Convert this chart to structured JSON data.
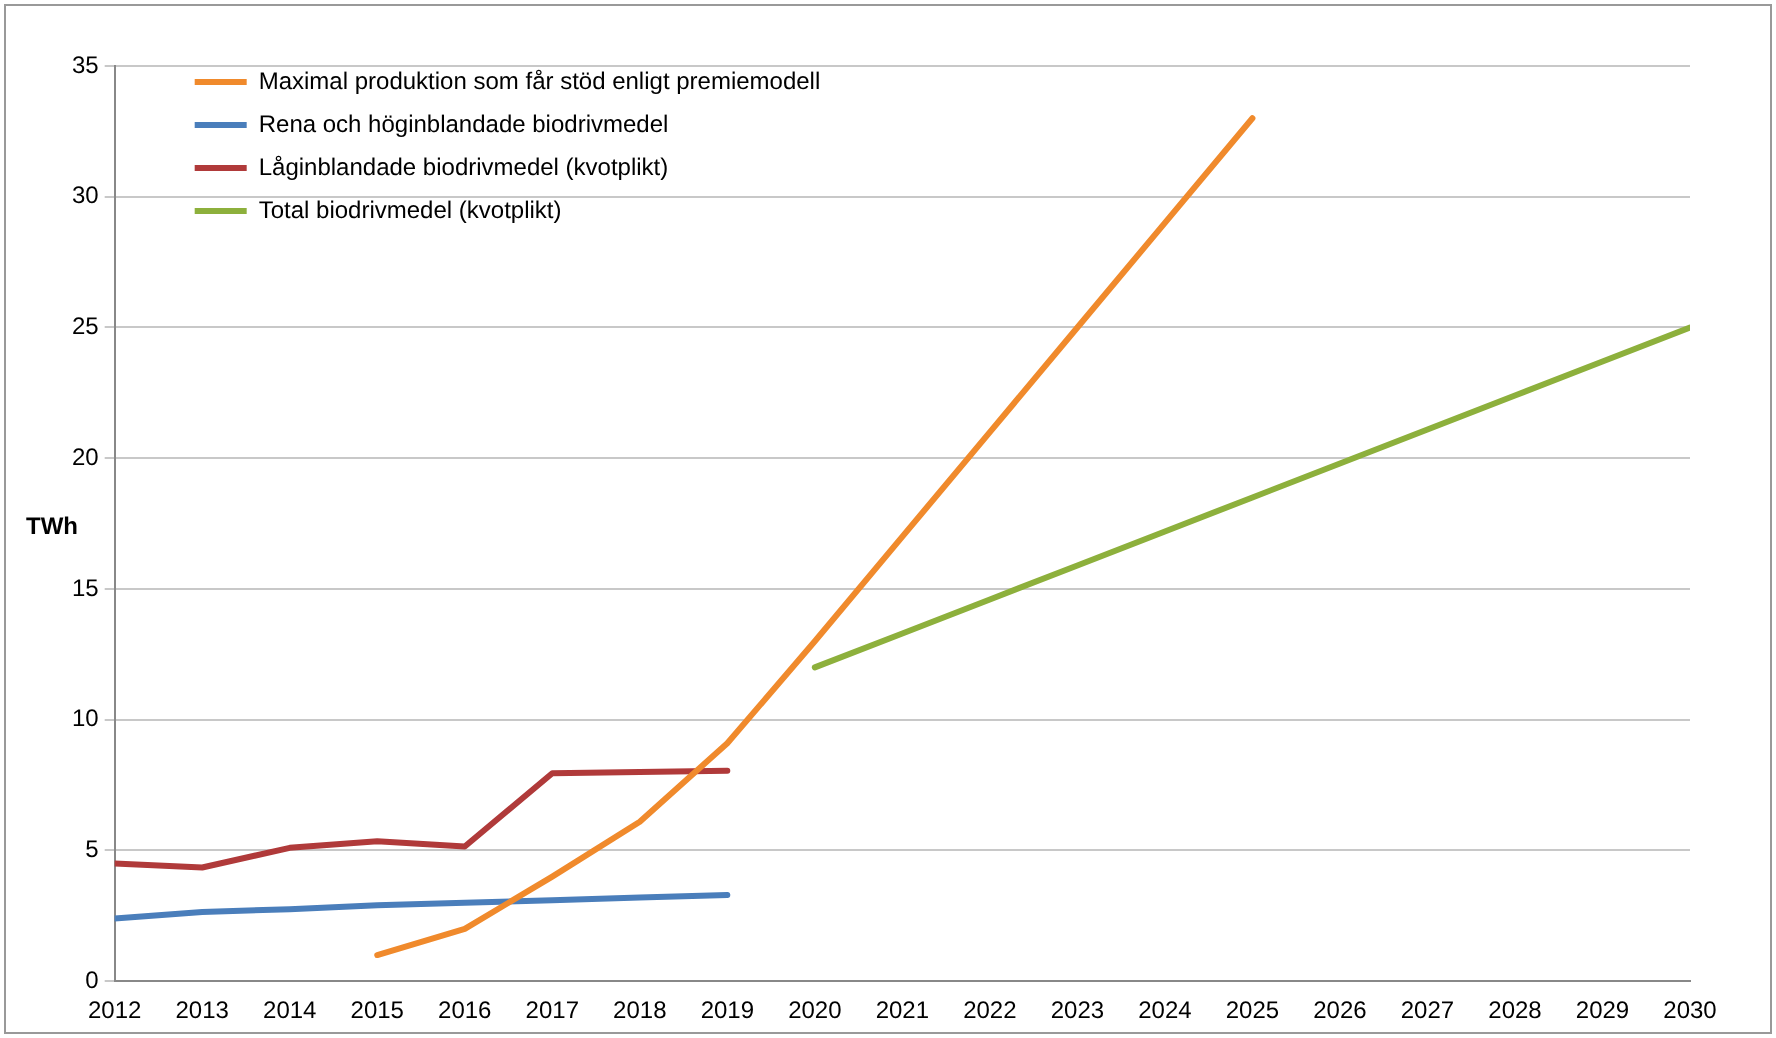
{
  "chart_data": {
    "type": "line",
    "ylabel": "TWh",
    "xlim": [
      2012,
      2030
    ],
    "xticks": [
      2012,
      2013,
      2014,
      2015,
      2016,
      2017,
      2018,
      2019,
      2020,
      2021,
      2022,
      2023,
      2024,
      2025,
      2026,
      2027,
      2028,
      2029,
      2030
    ],
    "ylim": [
      0,
      35
    ],
    "yticks": [
      0,
      5,
      10,
      15,
      20,
      25,
      30,
      35
    ],
    "grid": "y",
    "legend": "top left",
    "marker": "none",
    "line_style": "solid",
    "series": [
      {
        "name": "Maximal produktion som får stöd enligt premiemodell",
        "color": "#f08a2c",
        "x": [
          2015,
          2016,
          2017,
          2018,
          2019,
          2020,
          2021,
          2022,
          2023,
          2024,
          2025
        ],
        "values": [
          1.0,
          2.0,
          4.0,
          6.1,
          9.1,
          13,
          17,
          21,
          25,
          29,
          33
        ]
      },
      {
        "name": "Rena och höginblandade biodrivmedel",
        "color": "#4a7ebb",
        "x": [
          2012,
          2013,
          2014,
          2015,
          2016,
          2017,
          2018,
          2019
        ],
        "values": [
          2.4,
          2.65,
          2.75,
          2.9,
          3.0,
          3.1,
          3.2,
          3.3
        ]
      },
      {
        "name": "Låginblandade biodrivmedel (kvotplikt)",
        "color": "#b03a3a",
        "x": [
          2012,
          2013,
          2014,
          2015,
          2016,
          2017,
          2018,
          2019
        ],
        "values": [
          4.5,
          4.35,
          5.1,
          5.35,
          5.15,
          7.95,
          8.0,
          8.05
        ]
      },
      {
        "name": "Total biodrivmedel (kvotplikt)",
        "color": "#8db03c",
        "x": [
          2020,
          2021,
          2022,
          2023,
          2024,
          2025,
          2026,
          2027,
          2028,
          2029,
          2030
        ],
        "values": [
          12,
          13.3,
          14.6,
          15.9,
          17.2,
          18.5,
          19.8,
          21.1,
          22.4,
          23.7,
          25
        ]
      }
    ]
  }
}
